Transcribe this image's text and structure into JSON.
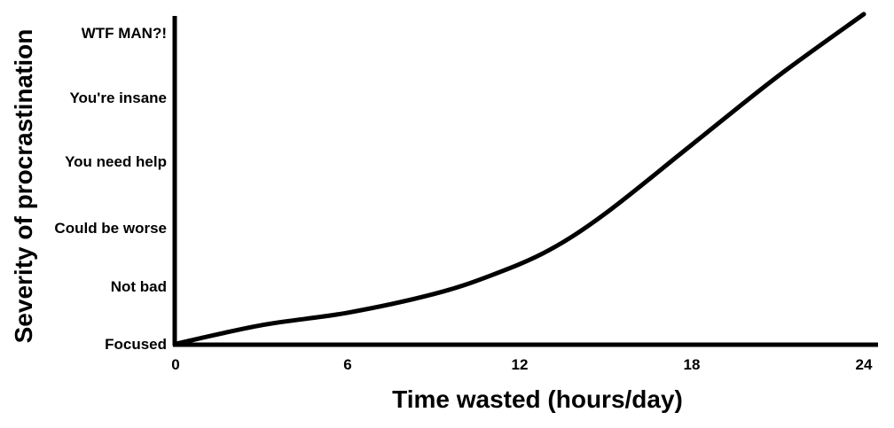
{
  "chart_data": {
    "type": "line",
    "title": "",
    "xlabel": "Time wasted (hours/day)",
    "ylabel": "Severity of procrastination",
    "xlim": [
      0,
      24
    ],
    "ylim": [
      0,
      5
    ],
    "x_ticks": [
      {
        "value": 0,
        "label": "0"
      },
      {
        "value": 6,
        "label": "6"
      },
      {
        "value": 12,
        "label": "12"
      },
      {
        "value": 18,
        "label": "18"
      },
      {
        "value": 24,
        "label": "24"
      }
    ],
    "y_ticks": [
      {
        "value": 0,
        "label": "Focused"
      },
      {
        "value": 1,
        "label": "Not bad"
      },
      {
        "value": 2,
        "label": "Could be worse"
      },
      {
        "value": 3,
        "label": "You need help"
      },
      {
        "value": 4,
        "label": "You're insane"
      },
      {
        "value": 5,
        "label": "WTF MAN?!"
      }
    ],
    "grid": false,
    "series": [
      {
        "x": [
          0,
          3,
          6,
          9,
          11,
          13,
          15,
          18,
          21,
          24
        ],
        "y": [
          0,
          0.3,
          0.5,
          0.8,
          1.1,
          1.5,
          2.1,
          3.2,
          4.3,
          5.3
        ]
      }
    ]
  },
  "colors": {
    "axis": "#000000",
    "line": "#000000",
    "text": "#000000",
    "highlight_label": "#e0303a",
    "background": "#ffffff"
  }
}
